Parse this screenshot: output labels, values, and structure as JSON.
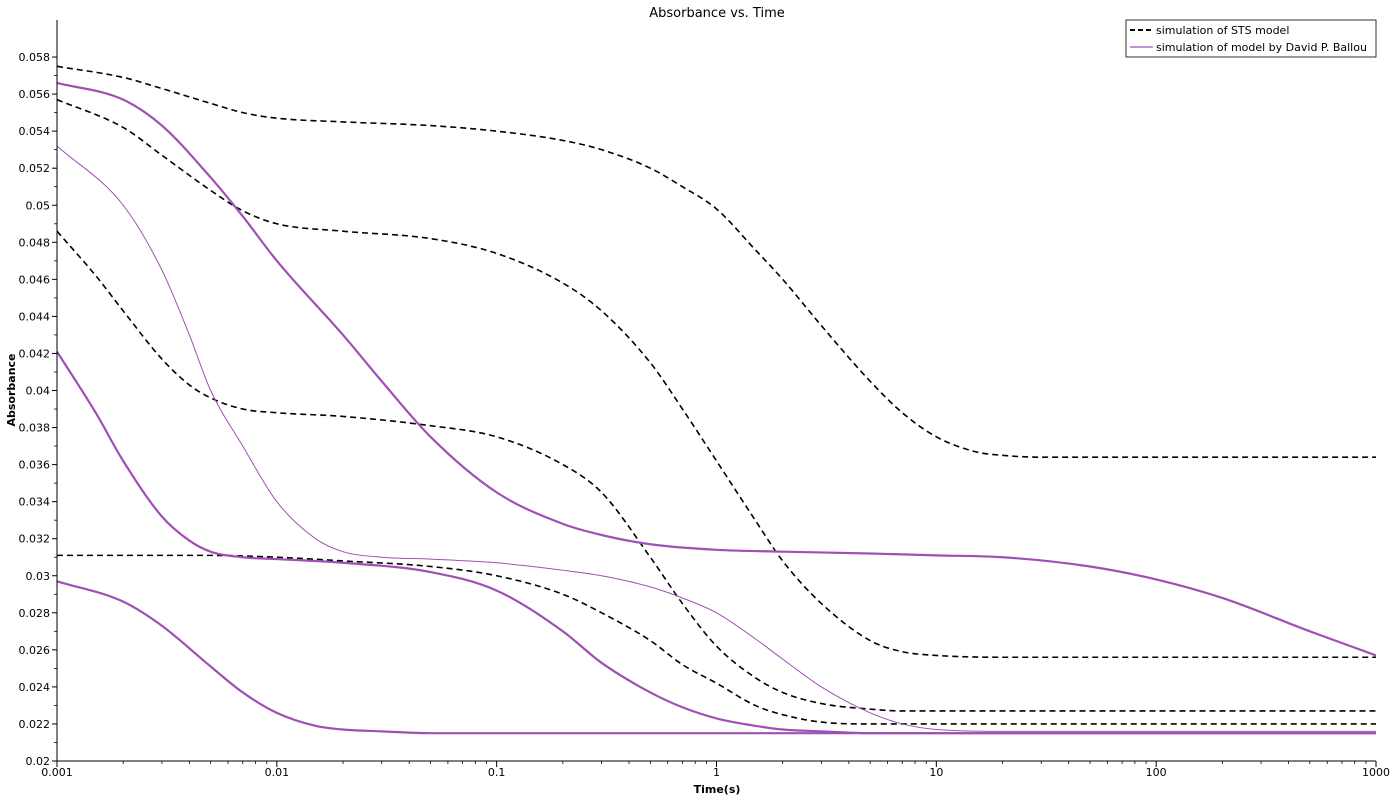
{
  "chart_data": {
    "type": "line",
    "title": "Absorbance vs. Time",
    "xlabel": "Time(s)",
    "ylabel": "Absorbance",
    "xscale": "log",
    "xlim": [
      0.001,
      1000
    ],
    "ylim": [
      0.02,
      0.06
    ],
    "x_tick_values": [
      0.001,
      0.01,
      0.1,
      1,
      10,
      100,
      1000
    ],
    "x_tick_labels": [
      "0.001",
      "0.01",
      "0.1",
      "1",
      "10",
      "100",
      "1000"
    ],
    "y_tick_values": [
      0.02,
      0.022,
      0.024,
      0.026,
      0.028,
      0.03,
      0.032,
      0.034,
      0.036,
      0.038,
      0.04,
      0.042,
      0.044,
      0.046,
      0.048,
      0.05,
      0.052,
      0.054,
      0.056,
      0.058
    ],
    "y_tick_labels": [
      "0.02",
      "0.022",
      "0.024",
      "0.026",
      "0.028",
      "0.03",
      "0.032",
      "0.034",
      "0.036",
      "0.038",
      "0.04",
      "0.042",
      "0.044",
      "0.046",
      "0.048",
      "0.05",
      "0.052",
      "0.054",
      "0.056",
      "0.058"
    ],
    "grid": false,
    "legend_position": "top-right",
    "legend": [
      {
        "label": "simulation of STS model",
        "style": "dashed",
        "color": "#000000"
      },
      {
        "label": "simulation of model by David P. Ballou",
        "style": "solid",
        "color": "#a050b4"
      }
    ],
    "series": [
      {
        "group": "STS",
        "style": "dashed",
        "color": "#000000",
        "width": 1.6,
        "x": [
          0.001,
          0.002,
          0.003,
          0.005,
          0.007,
          0.01,
          0.02,
          0.05,
          0.1,
          0.2,
          0.3,
          0.5,
          0.7,
          1,
          1.5,
          2,
          3,
          5,
          7,
          10,
          15,
          20,
          30,
          100,
          1000
        ],
        "y": [
          0.0575,
          0.0569,
          0.0563,
          0.0555,
          0.055,
          0.0547,
          0.0545,
          0.0543,
          0.054,
          0.0535,
          0.053,
          0.052,
          0.051,
          0.0498,
          0.0476,
          0.046,
          0.0435,
          0.0405,
          0.0388,
          0.0375,
          0.0367,
          0.0365,
          0.0364,
          0.0364,
          0.0364
        ]
      },
      {
        "group": "STS",
        "style": "dashed",
        "color": "#000000",
        "width": 1.6,
        "x": [
          0.001,
          0.002,
          0.003,
          0.005,
          0.007,
          0.01,
          0.02,
          0.05,
          0.1,
          0.2,
          0.3,
          0.5,
          0.7,
          1,
          1.5,
          2,
          3,
          5,
          7,
          10,
          20,
          1000
        ],
        "y": [
          0.0557,
          0.0542,
          0.0527,
          0.0508,
          0.0497,
          0.049,
          0.0486,
          0.0482,
          0.0474,
          0.0458,
          0.0443,
          0.0415,
          0.039,
          0.0362,
          0.033,
          0.0308,
          0.0285,
          0.0265,
          0.0259,
          0.0257,
          0.0256,
          0.0256
        ]
      },
      {
        "group": "STS",
        "style": "dashed",
        "color": "#000000",
        "width": 1.6,
        "x": [
          0.001,
          0.0015,
          0.002,
          0.003,
          0.004,
          0.005,
          0.007,
          0.01,
          0.02,
          0.05,
          0.1,
          0.2,
          0.3,
          0.5,
          0.7,
          1,
          1.5,
          2,
          3,
          5,
          7,
          10,
          1000
        ],
        "y": [
          0.0486,
          0.0462,
          0.0443,
          0.0417,
          0.0403,
          0.0396,
          0.039,
          0.0388,
          0.0386,
          0.0381,
          0.0375,
          0.036,
          0.0345,
          0.031,
          0.0285,
          0.0262,
          0.0245,
          0.0237,
          0.0231,
          0.0228,
          0.0227,
          0.0227,
          0.0227
        ]
      },
      {
        "group": "STS",
        "style": "dashed",
        "color": "#000000",
        "width": 1.6,
        "x": [
          0.001,
          0.005,
          0.01,
          0.02,
          0.05,
          0.1,
          0.2,
          0.3,
          0.5,
          0.7,
          1,
          1.5,
          2,
          3,
          5,
          1000
        ],
        "y": [
          0.0311,
          0.0311,
          0.031,
          0.0308,
          0.0305,
          0.03,
          0.029,
          0.028,
          0.0265,
          0.0252,
          0.0242,
          0.023,
          0.0225,
          0.0221,
          0.022,
          0.022
        ]
      },
      {
        "group": "Ballou",
        "style": "solid",
        "color": "#a050b4",
        "width": 2.2,
        "x": [
          0.001,
          0.002,
          0.003,
          0.005,
          0.007,
          0.01,
          0.02,
          0.03,
          0.05,
          0.1,
          0.2,
          0.3,
          0.5,
          1,
          2,
          5,
          10,
          20,
          50,
          100,
          200,
          500,
          1000
        ],
        "y": [
          0.0566,
          0.0557,
          0.0543,
          0.0515,
          0.0494,
          0.047,
          0.043,
          0.0405,
          0.0375,
          0.0345,
          0.0328,
          0.0322,
          0.0317,
          0.0314,
          0.0313,
          0.0312,
          0.0311,
          0.031,
          0.0305,
          0.0298,
          0.0288,
          0.027,
          0.0257
        ]
      },
      {
        "group": "Ballou",
        "style": "solid",
        "color": "#a050b4",
        "width": 1.0,
        "x": [
          0.001,
          0.002,
          0.003,
          0.004,
          0.005,
          0.007,
          0.01,
          0.015,
          0.02,
          0.03,
          0.05,
          0.1,
          0.2,
          0.3,
          0.5,
          0.7,
          1,
          1.5,
          2,
          3,
          5,
          7,
          10,
          20,
          1000
        ],
        "y": [
          0.0532,
          0.05,
          0.0465,
          0.043,
          0.04,
          0.037,
          0.034,
          0.032,
          0.0313,
          0.031,
          0.0309,
          0.0307,
          0.0303,
          0.03,
          0.0294,
          0.0288,
          0.028,
          0.0266,
          0.0255,
          0.024,
          0.0226,
          0.022,
          0.0217,
          0.0216,
          0.0216
        ]
      },
      {
        "group": "Ballou",
        "style": "solid",
        "color": "#a050b4",
        "width": 2.2,
        "x": [
          0.001,
          0.0015,
          0.002,
          0.003,
          0.004,
          0.005,
          0.007,
          0.01,
          0.02,
          0.05,
          0.1,
          0.2,
          0.3,
          0.5,
          0.7,
          1,
          1.5,
          2,
          3,
          5,
          1000
        ],
        "y": [
          0.0421,
          0.0388,
          0.0362,
          0.0332,
          0.0319,
          0.0313,
          0.031,
          0.0309,
          0.0307,
          0.0302,
          0.0292,
          0.027,
          0.0253,
          0.0237,
          0.0229,
          0.0223,
          0.0219,
          0.0217,
          0.0216,
          0.0215,
          0.0215
        ]
      },
      {
        "group": "Ballou",
        "style": "solid",
        "color": "#a050b4",
        "width": 2.2,
        "x": [
          0.001,
          0.002,
          0.003,
          0.005,
          0.007,
          0.01,
          0.015,
          0.02,
          0.03,
          0.05,
          0.1,
          1000
        ],
        "y": [
          0.0297,
          0.0286,
          0.0273,
          0.0251,
          0.0237,
          0.0226,
          0.0219,
          0.0217,
          0.0216,
          0.0215,
          0.0215,
          0.0215
        ]
      }
    ]
  }
}
